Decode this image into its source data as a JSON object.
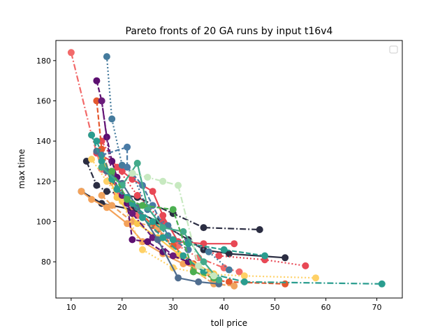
{
  "chart_data": {
    "type": "line",
    "title": "Pareto fronts of 20 GA runs by input t16v4",
    "xlabel": "toll price",
    "ylabel": "max time",
    "xlim": [
      7,
      75
    ],
    "ylim": [
      62,
      190
    ],
    "xticks": [
      10,
      20,
      30,
      40,
      50,
      60,
      70
    ],
    "yticks": [
      80,
      100,
      120,
      140,
      160,
      180
    ],
    "grid": false,
    "legend": {
      "placement": "top-right",
      "entries": []
    },
    "series": [
      {
        "color": "#2b2d42",
        "linestyle": "dashdot",
        "points": [
          [
            13,
            130
          ],
          [
            15,
            118
          ],
          [
            17,
            115
          ],
          [
            23,
            112
          ],
          [
            30,
            104
          ],
          [
            36,
            97
          ],
          [
            47,
            96
          ]
        ]
      },
      {
        "color": "#2b2d42",
        "linestyle": "solid",
        "points": [
          [
            12,
            115
          ],
          [
            16,
            109
          ],
          [
            22,
            106
          ],
          [
            27,
            100
          ],
          [
            33,
            91
          ],
          [
            36,
            86
          ],
          [
            41,
            84
          ],
          [
            52,
            82
          ]
        ]
      },
      {
        "color": "#e84855",
        "linestyle": "solid",
        "points": [
          [
            15,
            134
          ],
          [
            18,
            130
          ],
          [
            20,
            125
          ],
          [
            22,
            121
          ],
          [
            26,
            115
          ],
          [
            28,
            103
          ],
          [
            31,
            90
          ],
          [
            36,
            89
          ],
          [
            42,
            89
          ]
        ]
      },
      {
        "color": "#e84855",
        "linestyle": "dotted",
        "points": [
          [
            16,
            140
          ],
          [
            19,
            127
          ],
          [
            23,
            113
          ],
          [
            28,
            100
          ],
          [
            33,
            90
          ],
          [
            39,
            83
          ],
          [
            48,
            81
          ],
          [
            56,
            78
          ]
        ]
      },
      {
        "color": "#f26a6a",
        "linestyle": "dashdot",
        "points": [
          [
            10,
            184
          ],
          [
            14,
            143
          ],
          [
            16,
            126
          ],
          [
            19,
            114
          ],
          [
            23,
            103
          ],
          [
            27,
            96
          ],
          [
            31,
            88
          ],
          [
            35,
            82
          ],
          [
            40,
            77
          ],
          [
            43,
            75
          ]
        ]
      },
      {
        "color": "#e4572e",
        "linestyle": "dashed",
        "points": [
          [
            15,
            160
          ],
          [
            16,
            136
          ],
          [
            18,
            120
          ],
          [
            22,
            109
          ],
          [
            26,
            98
          ],
          [
            30,
            88
          ],
          [
            34,
            79
          ],
          [
            38,
            71
          ],
          [
            41,
            70
          ],
          [
            52,
            69
          ]
        ]
      },
      {
        "color": "#f4a259",
        "linestyle": "solid",
        "points": [
          [
            12,
            115
          ],
          [
            14,
            111
          ],
          [
            17,
            107
          ],
          [
            21,
            99
          ],
          [
            24,
            90
          ],
          [
            28,
            84
          ],
          [
            32,
            79
          ],
          [
            37,
            75
          ]
        ]
      },
      {
        "color": "#f0a35e",
        "linestyle": "dashed",
        "points": [
          [
            16,
            113
          ],
          [
            18,
            108
          ],
          [
            22,
            100
          ],
          [
            27,
            97
          ],
          [
            31,
            83
          ],
          [
            34,
            76
          ],
          [
            38,
            69
          ],
          [
            42,
            68
          ]
        ]
      },
      {
        "color": "#ffd166",
        "linestyle": "dotted",
        "points": [
          [
            14,
            131
          ],
          [
            17,
            120
          ],
          [
            20,
            110
          ],
          [
            24,
            86
          ],
          [
            30,
            77
          ],
          [
            36,
            74
          ],
          [
            44,
            73
          ],
          [
            58,
            72
          ]
        ]
      },
      {
        "color": "#f9c74f",
        "linestyle": "solid",
        "points": [
          [
            16,
            132
          ],
          [
            19,
            112
          ],
          [
            23,
            99
          ],
          [
            27,
            92
          ],
          [
            31,
            84
          ],
          [
            38,
            74
          ]
        ]
      },
      {
        "color": "#5c0f70",
        "linestyle": "dashed",
        "points": [
          [
            15,
            170
          ],
          [
            16,
            160
          ],
          [
            17,
            142
          ],
          [
            18,
            130
          ],
          [
            19,
            122
          ],
          [
            21,
            109
          ],
          [
            22,
            91
          ],
          [
            25,
            90
          ],
          [
            28,
            85
          ],
          [
            33,
            80
          ]
        ]
      },
      {
        "color": "#6a1b7a",
        "linestyle": "dashdot",
        "points": [
          [
            16,
            160
          ],
          [
            18,
            123
          ],
          [
            20,
            113
          ],
          [
            22,
            104
          ],
          [
            26,
            92
          ],
          [
            30,
            83
          ]
        ]
      },
      {
        "color": "#457b9d",
        "linestyle": "dotted",
        "points": [
          [
            17,
            182
          ],
          [
            18,
            151
          ],
          [
            20,
            128
          ],
          [
            22,
            124
          ],
          [
            25,
            106
          ],
          [
            29,
            98
          ],
          [
            33,
            90
          ],
          [
            37,
            85
          ],
          [
            41,
            76
          ]
        ]
      },
      {
        "color": "#4f6d8f",
        "linestyle": "solid",
        "points": [
          [
            15,
            135
          ],
          [
            17,
            125
          ],
          [
            20,
            119
          ],
          [
            23,
            107
          ],
          [
            27,
            91
          ],
          [
            31,
            72
          ],
          [
            35,
            70
          ],
          [
            39,
            69
          ]
        ]
      },
      {
        "color": "#4a7ba6",
        "linestyle": "dashed",
        "points": [
          [
            16,
            133
          ],
          [
            21,
            137
          ],
          [
            21,
            127
          ],
          [
            24,
            118
          ],
          [
            26,
            108
          ],
          [
            29,
            93
          ],
          [
            33,
            86
          ]
        ]
      },
      {
        "color": "#2a9d8f",
        "linestyle": "dashed",
        "points": [
          [
            14,
            143
          ],
          [
            16,
            130
          ],
          [
            19,
            116
          ],
          [
            22,
            109
          ],
          [
            26,
            100
          ],
          [
            30,
            91
          ],
          [
            33,
            89
          ],
          [
            40,
            86
          ],
          [
            48,
            83
          ]
        ]
      },
      {
        "color": "#2a9d8f",
        "linestyle": "dashdot",
        "points": [
          [
            15,
            140
          ],
          [
            18,
            121
          ],
          [
            21,
            112
          ],
          [
            24,
            102
          ],
          [
            28,
            92
          ],
          [
            32,
            83
          ],
          [
            36,
            75
          ],
          [
            44,
            70
          ],
          [
            71,
            69
          ]
        ]
      },
      {
        "color": "#43aa8b",
        "linestyle": "solid",
        "points": [
          [
            16,
            127
          ],
          [
            20,
            118
          ],
          [
            23,
            129
          ],
          [
            25,
            107
          ],
          [
            28,
            97
          ],
          [
            32,
            95
          ],
          [
            36,
            80
          ],
          [
            39,
            71
          ]
        ]
      },
      {
        "color": "#4caf50",
        "linestyle": "dashed",
        "points": [
          [
            18,
            125
          ],
          [
            21,
            111
          ],
          [
            24,
            108
          ],
          [
            30,
            106
          ],
          [
            34,
            75
          ],
          [
            38,
            72
          ]
        ]
      },
      {
        "color": "#c7e9c0",
        "linestyle": "dashdot",
        "points": [
          [
            22,
            124
          ],
          [
            25,
            122
          ],
          [
            28,
            120
          ],
          [
            31,
            118
          ],
          [
            35,
            78
          ],
          [
            38,
            73
          ]
        ]
      }
    ]
  }
}
